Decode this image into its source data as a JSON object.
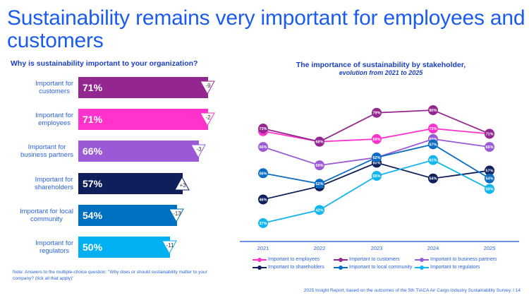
{
  "title": "Sustainability remains very important for employees and customers",
  "note": "Note: Answers to the multiple-choice question: \"Why does or should sustainability matter to your company? (tick all that apply)\"",
  "footer": "2025 Insight Report, based on the outcomes of the 5th TIACA Air Cargo Industry Sustainability Survey. I 14",
  "chart_data": [
    {
      "type": "bar",
      "orientation": "horizontal",
      "title": "Why is sustainability important to your organization?",
      "xlabel": "",
      "ylabel": "",
      "xlim": [
        0,
        100
      ],
      "categories": [
        [
          "Important for",
          "customers"
        ],
        [
          "Important for",
          "employees"
        ],
        [
          "Important for",
          "business partners"
        ],
        [
          "Important for",
          "shareholders"
        ],
        [
          "Important for local",
          "community"
        ],
        [
          "Important for",
          "regulators"
        ]
      ],
      "values": [
        71,
        71,
        66,
        57,
        54,
        50
      ],
      "value_labels": [
        "71%",
        "71%",
        "66%",
        "57%",
        "54%",
        "50%"
      ],
      "change_vs_previous": [
        -9,
        -2,
        -3,
        3,
        -13,
        -11
      ],
      "change_labels": [
        "-9",
        "-2",
        "-3",
        "+3",
        "-13",
        "-11"
      ],
      "colors": [
        "#93278f",
        "#ff33cc",
        "#9b59d6",
        "#0e1f5b",
        "#0070c0",
        "#00b0f0"
      ]
    },
    {
      "type": "line",
      "title": "The importance of sustainability by stakeholder,",
      "subtitle": "evolution from 2021 to 2025",
      "xlabel": "",
      "ylabel": "",
      "x": [
        "2021",
        "2022",
        "2023",
        "2024",
        "2025"
      ],
      "ylim": [
        37,
        80
      ],
      "grid": false,
      "legend_position": "bottom",
      "series": [
        {
          "name": "Important to employees",
          "color": "#ff33cc",
          "values": [
            72,
            68,
            69,
            73,
            71
          ]
        },
        {
          "name": "Important to customers",
          "color": "#93278f",
          "values": [
            73,
            68,
            79,
            80,
            71
          ]
        },
        {
          "name": "Important to business partners",
          "color": "#9b59d6",
          "values": [
            66,
            59,
            62,
            69,
            66
          ]
        },
        {
          "name": "Important to shareholders",
          "color": "#0e1f5b",
          "values": [
            46,
            51,
            60,
            54,
            57
          ]
        },
        {
          "name": "Important to local community",
          "color": "#0a6dc2",
          "values": [
            56,
            52,
            62,
            67,
            54
          ]
        },
        {
          "name": "Important to regulators",
          "color": "#12b5ee",
          "values": [
            37,
            42,
            55,
            61,
            50
          ]
        }
      ]
    }
  ]
}
